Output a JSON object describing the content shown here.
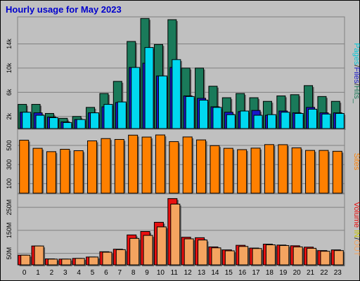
{
  "chart_data": [
    {
      "type": "bar",
      "title": "Hourly usage for May 2023",
      "panel": "hits",
      "categories": [
        "0",
        "1",
        "2",
        "3",
        "4",
        "5",
        "6",
        "7",
        "8",
        "9",
        "10",
        "11",
        "12",
        "13",
        "14",
        "15",
        "16",
        "17",
        "18",
        "19",
        "20",
        "21",
        "22",
        "23"
      ],
      "y_ticks": [
        "2k",
        "6k",
        "10k",
        "14k"
      ],
      "ylim": [
        0,
        18000
      ],
      "series": [
        {
          "name": "Hits",
          "values": [
            4000,
            4000,
            2500,
            1700,
            2000,
            3500,
            5800,
            7800,
            14400,
            18200,
            13900,
            18000,
            10000,
            10000,
            7000,
            5100,
            5800,
            5100,
            4500,
            5400,
            5600,
            7100,
            5300,
            4500
          ]
        },
        {
          "name": "Files",
          "values": [
            2700,
            2600,
            1900,
            1100,
            1500,
            2600,
            3600,
            4300,
            10100,
            10800,
            8700,
            10100,
            5400,
            5000,
            3600,
            2700,
            2800,
            3000,
            2200,
            2900,
            2600,
            3500,
            2600,
            2600
          ]
        },
        {
          "name": "Pages",
          "values": [
            2700,
            2200,
            1800,
            1000,
            1500,
            2600,
            4000,
            4400,
            10100,
            13400,
            8700,
            11400,
            5300,
            4700,
            3500,
            2300,
            2900,
            2200,
            2300,
            2700,
            2500,
            3200,
            2400,
            2500
          ]
        }
      ],
      "colors": {
        "Hits": "#1a7a5a",
        "Files": "#1818c8",
        "Pages": "#00d8f0"
      }
    },
    {
      "type": "bar",
      "panel": "sites",
      "categories": [
        "0",
        "1",
        "2",
        "3",
        "4",
        "5",
        "6",
        "7",
        "8",
        "9",
        "10",
        "11",
        "12",
        "13",
        "14",
        "15",
        "16",
        "17",
        "18",
        "19",
        "20",
        "21",
        "22",
        "23"
      ],
      "y_ticks": [
        "100",
        "300",
        "500"
      ],
      "ylim": [
        0,
        640
      ],
      "series": [
        {
          "name": "Sites",
          "values": [
            555,
            470,
            435,
            460,
            445,
            548,
            572,
            563,
            608,
            588,
            610,
            540,
            589,
            558,
            498,
            470,
            456,
            472,
            509,
            508,
            475,
            448,
            448,
            439
          ]
        }
      ],
      "colors": {
        "Sites": "#ff8000"
      }
    },
    {
      "type": "bar",
      "panel": "volume",
      "categories": [
        "0",
        "1",
        "2",
        "3",
        "4",
        "5",
        "6",
        "7",
        "8",
        "9",
        "10",
        "11",
        "12",
        "13",
        "14",
        "15",
        "16",
        "17",
        "18",
        "19",
        "20",
        "21",
        "22",
        "23"
      ],
      "y_ticks": [
        "50M",
        "150M",
        "250M"
      ],
      "ylim": [
        0,
        290
      ],
      "series": [
        {
          "name": "In",
          "values": [
            42,
            82,
            26,
            25,
            28,
            34,
            57,
            68,
            130,
            145,
            185,
            288,
            120,
            118,
            78,
            65,
            85,
            73,
            90,
            86,
            83,
            77,
            62,
            65
          ]
        },
        {
          "name": "Out",
          "values": [
            42,
            82,
            25,
            25,
            28,
            34,
            55,
            66,
            115,
            128,
            165,
            264,
            113,
            108,
            74,
            61,
            80,
            71,
            87,
            84,
            78,
            72,
            59,
            62
          ]
        }
      ],
      "colors": {
        "In": "#e81010",
        "Out": "#f4a460"
      }
    }
  ],
  "legend": {
    "hits_panel": [
      "Pages",
      "/",
      "Files",
      "/",
      "Hits_"
    ],
    "sites_panel": [
      "Sites"
    ],
    "volume_panel": [
      "Volume",
      " ",
      "IN",
      "/",
      "OUT"
    ],
    "colors": {
      "Pages": "#00c8d8",
      "Files": "#1818c8",
      "Hits": "#1a7a5a",
      "sep": "#1a1a1a",
      "Sites": "#ff8000",
      "Volume": "#e81010",
      "IN": "#c8c800",
      "OUT": "#f4a460"
    }
  }
}
